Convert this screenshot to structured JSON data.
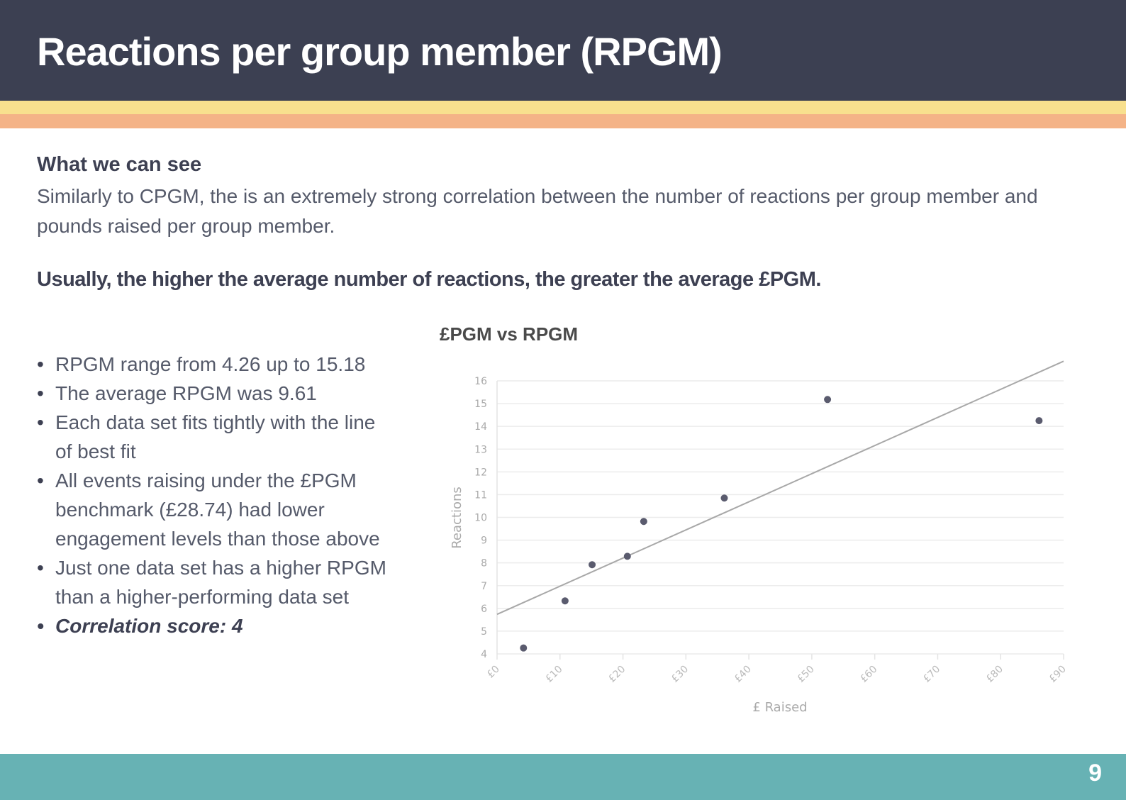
{
  "header": {
    "title": "Reactions per group member  (RPGM)"
  },
  "body": {
    "subheading": "What we can see",
    "paragraph": "Similarly to CPGM, the is an extremely strong correlation between the number of reactions per group member and pounds raised per group member.",
    "conclusion": "Usually, the higher the average number of reactions, the greater the average £PGM.",
    "bullets": [
      "RPGM range from 4.26 up to 15.18",
      "The average RPGM was 9.61",
      "Each data set fits tightly with the line of best fit",
      "All events raising under the £PGM benchmark (£28.74) had lower engagement levels than those above",
      "Just one data set has a higher RPGM than a higher-performing data set",
      "Correlation score: 4"
    ]
  },
  "footer": {
    "page_number": "9"
  },
  "colors": {
    "header": "#3c4052",
    "stripe_yellow": "#f8e08e",
    "stripe_orange": "#f4b387",
    "footer": "#67b2b4",
    "points": "#5a5b6e",
    "trendline": "#a8a8a8"
  },
  "chart_data": {
    "type": "scatter",
    "title": "£PGM vs RPGM",
    "xlabel": "£ Raised",
    "ylabel": "Reactions",
    "xlim": [
      0,
      90
    ],
    "ylim": [
      4,
      16
    ],
    "xticks": [
      "£0",
      "£10",
      "£20",
      "£30",
      "£40",
      "£50",
      "£60",
      "£70",
      "£80",
      "£90"
    ],
    "yticks": [
      "4",
      "5",
      "6",
      "7",
      "8",
      "9",
      "10",
      "11",
      "12",
      "13",
      "14",
      "15",
      "16"
    ],
    "grid": "horizontal",
    "points": [
      {
        "x": 4.2,
        "y": 4.26
      },
      {
        "x": 10.8,
        "y": 6.33
      },
      {
        "x": 15.1,
        "y": 7.92
      },
      {
        "x": 20.7,
        "y": 8.29
      },
      {
        "x": 23.3,
        "y": 9.82
      },
      {
        "x": 36.1,
        "y": 10.85
      },
      {
        "x": 52.5,
        "y": 15.18
      },
      {
        "x": 86.1,
        "y": 14.25
      }
    ],
    "trendline": {
      "type": "linear",
      "intercept": 5.74,
      "slope": 0.1236
    }
  }
}
